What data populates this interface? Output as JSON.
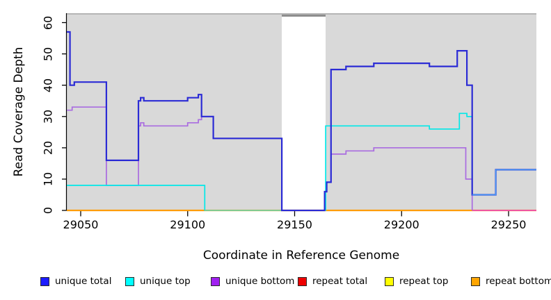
{
  "chart_data": {
    "type": "line",
    "subtype": "step-coverage",
    "title": "",
    "xlabel": "Coordinate in Reference Genome",
    "ylabel": "Read Coverage Depth",
    "xlim": [
      29043.5,
      29263
    ],
    "ylim": [
      0,
      63
    ],
    "x_ticks": [
      29050,
      29100,
      29150,
      29200,
      29250
    ],
    "y_ticks": [
      0,
      10,
      20,
      30,
      40,
      50,
      60
    ],
    "grid": false,
    "plot_bg": "#d9d9d9",
    "page_bg": "#ffffff",
    "gap_region": {
      "x_start": 29144,
      "x_end": 29164.5
    },
    "series": [
      {
        "name": "repeat total",
        "color": "#ee0000",
        "width": 2,
        "points": [
          [
            29043.5,
            0
          ],
          [
            29263,
            0
          ]
        ]
      },
      {
        "name": "repeat top",
        "color": "#ffff00",
        "width": 2,
        "points": [
          [
            29043.5,
            0
          ],
          [
            29263,
            0
          ]
        ]
      },
      {
        "name": "repeat bottom",
        "color": "#ff9d00",
        "width": 2.2,
        "points": [
          [
            29043.5,
            0
          ],
          [
            29263,
            0
          ]
        ]
      },
      {
        "name": "zero-line overlap pink",
        "color": "#ee55a0",
        "width": 2,
        "points": [
          [
            29233,
            0
          ],
          [
            29263,
            0
          ]
        ]
      },
      {
        "name": "unique bottom",
        "color": "#a96be0",
        "width": 1.7,
        "points": [
          [
            29043.5,
            32
          ],
          [
            29046,
            33
          ],
          [
            29062,
            8
          ],
          [
            29077,
            27
          ],
          [
            29078,
            28
          ],
          [
            29079.5,
            27
          ],
          [
            29100,
            28
          ],
          [
            29105,
            29
          ],
          [
            29106.5,
            30
          ],
          [
            29112,
            23
          ],
          [
            29144,
            0
          ],
          [
            29164,
            6
          ],
          [
            29165,
            9
          ],
          [
            29167,
            18
          ],
          [
            29174,
            19
          ],
          [
            29187,
            20
          ],
          [
            29230,
            10
          ],
          [
            29233,
            0
          ]
        ]
      },
      {
        "name": "unique top",
        "color": "#00e8e8",
        "width": 1.7,
        "points": [
          [
            29043.5,
            8
          ],
          [
            29108,
            0
          ],
          [
            29164.5,
            27
          ],
          [
            29213,
            26
          ],
          [
            29227,
            31
          ],
          [
            29230.5,
            30
          ],
          [
            29233,
            5
          ],
          [
            29244,
            13
          ],
          [
            29263,
            13
          ]
        ]
      },
      {
        "name": "zero-line overlap green",
        "color": "#8cc88c",
        "width": 1.8,
        "points": [
          [
            29108,
            0
          ],
          [
            29164.5,
            0
          ]
        ]
      },
      {
        "name": "unique total",
        "color": "#2b2bd5",
        "width": 2.2,
        "points": [
          [
            29043.5,
            57
          ],
          [
            29045,
            40
          ],
          [
            29047,
            41
          ],
          [
            29062,
            16
          ],
          [
            29077,
            35
          ],
          [
            29078,
            36
          ],
          [
            29079.5,
            35
          ],
          [
            29100,
            36
          ],
          [
            29105,
            37
          ],
          [
            29106.5,
            30
          ],
          [
            29112,
            23
          ],
          [
            29144,
            0
          ],
          [
            29164,
            6
          ],
          [
            29165,
            9
          ],
          [
            29167,
            45
          ],
          [
            29174,
            46
          ],
          [
            29187,
            47
          ],
          [
            29213,
            46
          ],
          [
            29226,
            51
          ],
          [
            29230.5,
            40
          ],
          [
            29233,
            5
          ],
          [
            29244,
            13
          ],
          [
            29263,
            13
          ]
        ]
      },
      {
        "name": "unique total+top overlap tail",
        "color": "#4aa0f5",
        "width": 1.4,
        "points": [
          [
            29233,
            5
          ],
          [
            29244,
            13
          ],
          [
            29263,
            13
          ]
        ]
      }
    ],
    "legend": {
      "position": "bottom",
      "items": [
        {
          "label": "unique total",
          "color": "#1c1cff"
        },
        {
          "label": "unique top",
          "color": "#00ffff"
        },
        {
          "label": "unique bottom",
          "color": "#a020f0"
        },
        {
          "label": "repeat total",
          "color": "#ee0000"
        },
        {
          "label": "repeat top",
          "color": "#ffff00"
        },
        {
          "label": "repeat bottom",
          "color": "#ffa500"
        }
      ]
    },
    "axis_color": "#000000"
  }
}
